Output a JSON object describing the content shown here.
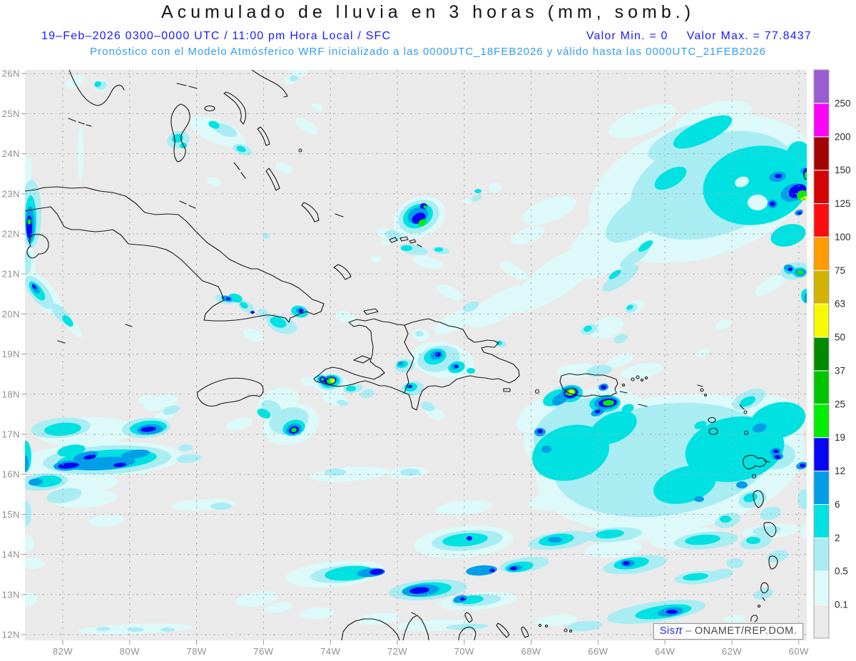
{
  "header": {
    "title": "Acumulado de lluvia en 3 horas (mm, somb.)",
    "datetime_line": "19–Feb–2026  0300–0000 UTC / 11:00 pm Hora Local / SFC",
    "valor_min": "Valor Min. = 0",
    "valor_max": "Valor Max. = 77.8437",
    "model_line": "Pronóstico con el Modelo Atmósferico WRF inicializado a las 0000UTC_18FEB2026 y válido hasta las  0000UTC_21FEB2026"
  },
  "map": {
    "plot_bg": "#eaeaea",
    "grid_color": "#a9a9a9",
    "coast_color": "#151515",
    "lat_labels": [
      "26N",
      "25N",
      "24N",
      "23N",
      "22N",
      "21N",
      "20N",
      "19N",
      "18N",
      "17N",
      "16N",
      "15N",
      "14N",
      "13N",
      "12N"
    ],
    "lon_labels": [
      "82W",
      "80W",
      "78W",
      "76W",
      "74W",
      "72W",
      "70W",
      "68W",
      "66W",
      "64W",
      "62W",
      "60W"
    ],
    "credit": {
      "sis": "Sis",
      "pi": "π",
      "dash": "–",
      "org": "ONAMET/REP.DOM."
    }
  },
  "colorbar": {
    "labels_bottom_to_top": [
      "0.1",
      "0.5",
      "2",
      "6",
      "12",
      "19",
      "25",
      "37",
      "50",
      "63",
      "75",
      "100",
      "125",
      "150",
      "200",
      "250"
    ],
    "colors_bottom_to_top": [
      "#eaeaea",
      "#ddf9f9",
      "#a9edf3",
      "#00e2e2",
      "#009ee8",
      "#0606f2",
      "#00ee00",
      "#00c400",
      "#008a00",
      "#f8f800",
      "#d2b400",
      "#ff9c00",
      "#f90f0f",
      "#d40505",
      "#a30303",
      "#fa05fa",
      "#9a5cd0"
    ],
    "units": "mm"
  }
}
